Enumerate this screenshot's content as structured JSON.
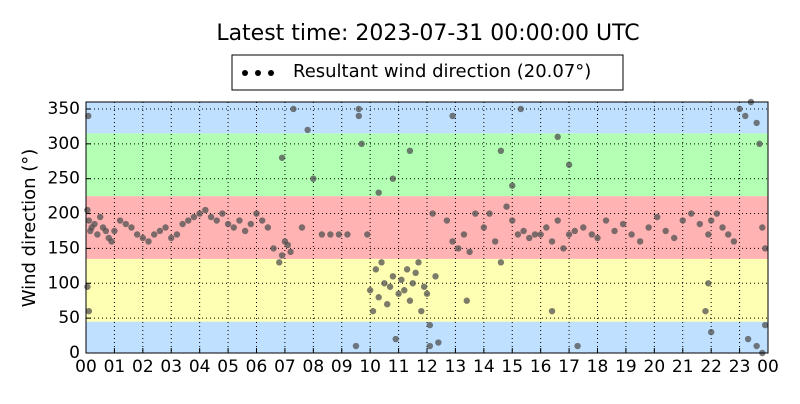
{
  "chart_data": {
    "type": "scatter",
    "title": "Latest time: 2023-07-31 00:00:00 UTC",
    "y_label": "Wind direction (°)",
    "grid": true,
    "legend": "top",
    "bands": [
      {
        "from": 0,
        "to": 45,
        "color": "#bfe0ff"
      },
      {
        "from": 45,
        "to": 135,
        "color": "#ffffb3"
      },
      {
        "from": 135,
        "to": 225,
        "color": "#ffb3b3"
      },
      {
        "from": 225,
        "to": 315,
        "color": "#b3ffb3"
      },
      {
        "from": 315,
        "to": 360,
        "color": "#bfe0ff"
      }
    ],
    "xlim": [
      0,
      24
    ],
    "xticks": [
      {
        "value": 0,
        "label": "00"
      },
      {
        "value": 1,
        "label": "01"
      },
      {
        "value": 2,
        "label": "02"
      },
      {
        "value": 3,
        "label": "03"
      },
      {
        "value": 4,
        "label": "04"
      },
      {
        "value": 5,
        "label": "05"
      },
      {
        "value": 6,
        "label": "06"
      },
      {
        "value": 7,
        "label": "07"
      },
      {
        "value": 8,
        "label": "08"
      },
      {
        "value": 9,
        "label": "09"
      },
      {
        "value": 10,
        "label": "10"
      },
      {
        "value": 11,
        "label": "11"
      },
      {
        "value": 12,
        "label": "12"
      },
      {
        "value": 13,
        "label": "13"
      },
      {
        "value": 14,
        "label": "14"
      },
      {
        "value": 15,
        "label": "15"
      },
      {
        "value": 16,
        "label": "16"
      },
      {
        "value": 17,
        "label": "17"
      },
      {
        "value": 18,
        "label": "18"
      },
      {
        "value": 19,
        "label": "19"
      },
      {
        "value": 20,
        "label": "20"
      },
      {
        "value": 21,
        "label": "21"
      },
      {
        "value": 22,
        "label": "22"
      },
      {
        "value": 23,
        "label": "23"
      },
      {
        "value": 24,
        "label": "00"
      }
    ],
    "ylim": [
      0,
      360
    ],
    "yticks": [
      0,
      50,
      100,
      150,
      200,
      250,
      300,
      350
    ],
    "series": [
      {
        "name": "Resultant wind direction (20.07°)",
        "color": "#505050",
        "x": [
          0.05,
          0.1,
          0.15,
          0.2,
          0.3,
          0.4,
          0.5,
          0.6,
          0.7,
          0.8,
          0.9,
          0.05,
          0.1,
          0.08,
          1,
          1.2,
          1.4,
          1.6,
          1.8,
          2,
          2.2,
          2.4,
          2.6,
          2.8,
          3,
          3.2,
          3.4,
          3.6,
          3.8,
          4,
          4.2,
          4.4,
          4.6,
          4.8,
          5,
          5.2,
          5.4,
          5.6,
          5.8,
          6,
          6.2,
          6.4,
          6.6,
          6.8,
          6.9,
          7,
          7.1,
          7.2,
          7.3,
          6.9,
          7.6,
          7.8,
          8,
          8.3,
          8.6,
          8.9,
          9.2,
          9.5,
          9.6,
          9.7,
          9.9,
          10,
          10.1,
          10.2,
          10.3,
          10.4,
          10.5,
          10.6,
          10.7,
          10.8,
          10.9,
          11,
          11.1,
          11.2,
          11.3,
          11.4,
          11.5,
          11.6,
          11.7,
          11.8,
          11.9,
          12,
          12.1,
          12.2,
          12.3,
          12.4,
          9.6,
          10.3,
          10.8,
          11.4,
          12.1,
          12.7,
          12.9,
          13.1,
          13.3,
          13.5,
          13.7,
          12.9,
          13.4,
          14,
          14.2,
          14.4,
          14.6,
          14.8,
          15,
          15.2,
          15.4,
          15.6,
          15.8,
          14.6,
          15,
          15.3,
          16,
          16.2,
          16.4,
          16.6,
          16.8,
          17,
          17.2,
          16.4,
          16.6,
          17,
          17.3,
          17.5,
          17.8,
          18,
          18.3,
          18.6,
          18.9,
          19.2,
          19.5,
          19.8,
          20.1,
          20.4,
          20.7,
          21,
          21.3,
          21.6,
          21.9,
          22,
          22.2,
          22.4,
          22.6,
          22.8,
          21.8,
          21.9,
          22,
          23,
          23.2,
          23.4,
          23.6,
          23.8,
          23.9,
          23.3,
          23.6,
          23.8,
          23.9,
          23.7
        ],
        "values": [
          205,
          190,
          175,
          180,
          185,
          170,
          195,
          180,
          175,
          165,
          160,
          95,
          60,
          340,
          175,
          190,
          185,
          180,
          170,
          165,
          160,
          170,
          175,
          180,
          165,
          170,
          185,
          190,
          195,
          200,
          205,
          195,
          190,
          200,
          185,
          180,
          190,
          175,
          185,
          200,
          190,
          180,
          150,
          130,
          140,
          160,
          155,
          145,
          350,
          280,
          180,
          320,
          250,
          170,
          170,
          170,
          170,
          10,
          340,
          300,
          170,
          90,
          60,
          120,
          80,
          130,
          100,
          70,
          95,
          110,
          20,
          85,
          105,
          90,
          120,
          75,
          100,
          115,
          130,
          60,
          95,
          85,
          40,
          200,
          110,
          15,
          350,
          230,
          250,
          290,
          10,
          190,
          160,
          150,
          170,
          145,
          200,
          340,
          75,
          180,
          200,
          160,
          130,
          210,
          190,
          170,
          175,
          165,
          170,
          290,
          240,
          350,
          170,
          180,
          160,
          190,
          150,
          170,
          175,
          60,
          310,
          270,
          10,
          180,
          170,
          165,
          190,
          175,
          185,
          170,
          160,
          180,
          195,
          175,
          165,
          190,
          200,
          185,
          170,
          190,
          200,
          180,
          170,
          160,
          60,
          100,
          30,
          350,
          340,
          360,
          330,
          180,
          150,
          20,
          10,
          0,
          40,
          300
        ]
      }
    ]
  }
}
